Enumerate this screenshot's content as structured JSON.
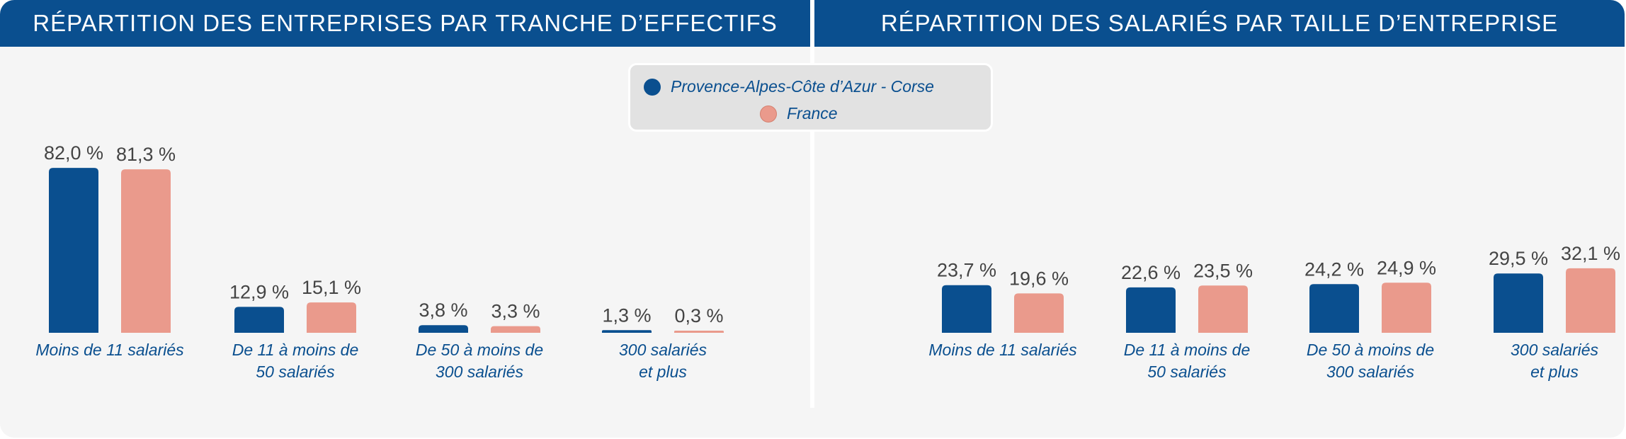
{
  "colors": {
    "region": "#0a4f8f",
    "france": "#ea9a8c",
    "header_bg": "#0a4f8f"
  },
  "legend": [
    {
      "label": "Provence-Alpes-Côte d’Azur - Corse",
      "color": "#0a4f8f"
    },
    {
      "label": "France",
      "color": "#ea9a8c"
    }
  ],
  "chart_data": [
    {
      "type": "bar",
      "title": "RÉPARTITION DES ENTREPRISES PAR TRANCHE D’EFFECTIFS",
      "categories": [
        [
          "Moins de 11 salariés"
        ],
        [
          "De 11 à moins de",
          "50 salariés"
        ],
        [
          "De 50 à moins de",
          "300 salariés"
        ],
        [
          "300 salariés",
          "et plus"
        ]
      ],
      "series": [
        {
          "name": "Provence-Alpes-Côte d’Azur - Corse",
          "values": [
            82.0,
            12.9,
            3.8,
            1.3
          ],
          "labels": [
            "82,0 %",
            "12,9 %",
            "3,8 %",
            "1,3 %"
          ]
        },
        {
          "name": "France",
          "values": [
            81.3,
            15.1,
            3.3,
            0.3
          ],
          "labels": [
            "81,3 %",
            "15,1 %",
            "3,3 %",
            "0,3 %"
          ]
        }
      ],
      "ylim": [
        0,
        100
      ],
      "grid": false
    },
    {
      "type": "bar",
      "title": "RÉPARTITION DES SALARIÉS PAR TAILLE D’ENTREPRISE",
      "categories": [
        [
          "Moins de 11 salariés"
        ],
        [
          "De 11 à moins de",
          "50 salariés"
        ],
        [
          "De 50 à moins de",
          "300 salariés"
        ],
        [
          "300 salariés",
          "et plus"
        ]
      ],
      "series": [
        {
          "name": "Provence-Alpes-Côte d’Azur - Corse",
          "values": [
            23.7,
            22.6,
            24.2,
            29.5
          ],
          "labels": [
            "23,7 %",
            "22,6 %",
            "24,2 %",
            "29,5 %"
          ]
        },
        {
          "name": "France",
          "values": [
            19.6,
            23.5,
            24.9,
            32.1
          ],
          "labels": [
            "19,6 %",
            "23,5 %",
            "24,9 %",
            "32,1 %"
          ]
        }
      ],
      "ylim": [
        0,
        100
      ],
      "grid": false
    }
  ]
}
